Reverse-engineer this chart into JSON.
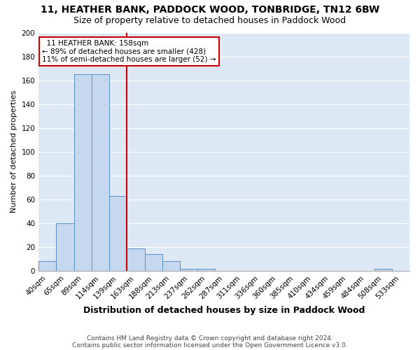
{
  "title": "11, HEATHER BANK, PADDOCK WOOD, TONBRIDGE, TN12 6BW",
  "subtitle": "Size of property relative to detached houses in Paddock Wood",
  "xlabel": "Distribution of detached houses by size in Paddock Wood",
  "ylabel": "Number of detached properties",
  "footnote1": "Contains HM Land Registry data © Crown copyright and database right 2024.",
  "footnote2": "Contains public sector information licensed under the Open Government Licence v3.0.",
  "bin_labels": [
    "40sqm",
    "65sqm",
    "89sqm",
    "114sqm",
    "139sqm",
    "163sqm",
    "188sqm",
    "213sqm",
    "237sqm",
    "262sqm",
    "287sqm",
    "311sqm",
    "336sqm",
    "360sqm",
    "385sqm",
    "410sqm",
    "434sqm",
    "459sqm",
    "484sqm",
    "508sqm",
    "533sqm"
  ],
  "bar_heights": [
    8,
    40,
    165,
    165,
    63,
    19,
    14,
    8,
    2,
    2,
    0,
    0,
    0,
    0,
    0,
    0,
    0,
    0,
    0,
    2,
    0
  ],
  "bar_color": "#c5d8f0",
  "bar_edge_color": "#5b8fc9",
  "property_label": "11 HEATHER BANK: 158sqm",
  "annotation_line1": "← 89% of detached houses are smaller (428)",
  "annotation_line2": "11% of semi-detached houses are larger (52) →",
  "vline_color": "#cc0000",
  "annotation_box_color": "#cc0000",
  "ylim": [
    0,
    200
  ],
  "yticks": [
    0,
    20,
    40,
    60,
    80,
    100,
    120,
    140,
    160,
    180,
    200
  ],
  "background_color": "#ffffff",
  "plot_bg_color": "#dce9f5",
  "grid_color": "#ffffff",
  "title_fontsize": 10,
  "subtitle_fontsize": 9,
  "ylabel_fontsize": 8,
  "xlabel_fontsize": 9,
  "annotation_fontsize": 7.5,
  "tick_fontsize": 7.5,
  "footnote_fontsize": 6.5
}
